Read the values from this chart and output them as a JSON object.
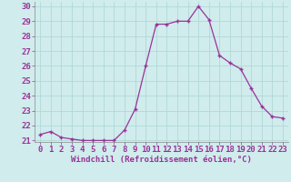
{
  "hours": [
    0,
    1,
    2,
    3,
    4,
    5,
    6,
    7,
    8,
    9,
    10,
    11,
    12,
    13,
    14,
    15,
    16,
    17,
    18,
    19,
    20,
    21,
    22,
    23
  ],
  "values": [
    21.4,
    21.6,
    21.2,
    21.1,
    21.0,
    21.0,
    21.0,
    21.0,
    21.7,
    23.1,
    26.0,
    28.8,
    28.8,
    29.0,
    29.0,
    30.0,
    29.1,
    26.7,
    26.2,
    25.8,
    24.5,
    23.3,
    22.6,
    22.5
  ],
  "line_color": "#993399",
  "marker": "+",
  "bg_color": "#d0ecec",
  "grid_color": "#b0d8d8",
  "xlabel": "Windchill (Refroidissement éolien,°C)",
  "ylim_min": 21,
  "ylim_max": 30,
  "xlim_min": 0,
  "xlim_max": 23,
  "xlabel_fontsize": 6.5,
  "tick_fontsize": 6.5
}
